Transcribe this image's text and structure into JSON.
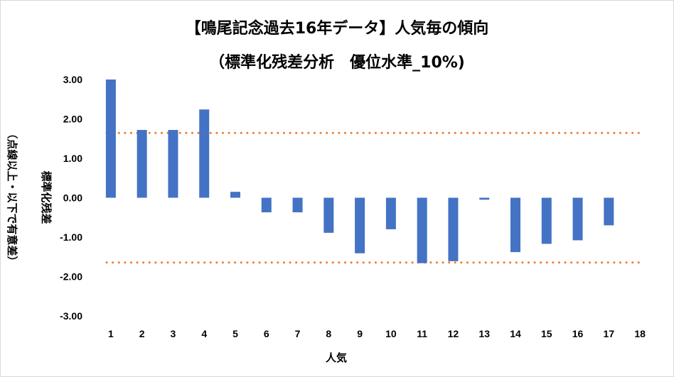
{
  "chart_data": {
    "type": "bar",
    "title": "【鳴尾記念過去16年データ】人気毎の傾向",
    "subtitle": "（標準化残差分析　優位水準_10%)",
    "xlabel": "人気",
    "ylabel_main": "標準化残差",
    "ylabel_sub": "（点線以上・以下で有意差）",
    "categories": [
      "1",
      "2",
      "3",
      "4",
      "5",
      "6",
      "7",
      "8",
      "9",
      "10",
      "11",
      "12",
      "13",
      "14",
      "15",
      "16",
      "17",
      "18"
    ],
    "values": [
      3.0,
      1.72,
      1.72,
      2.24,
      0.15,
      -0.37,
      -0.37,
      -0.89,
      -1.41,
      -0.8,
      -1.66,
      -1.61,
      -0.05,
      -1.38,
      -1.17,
      -1.08,
      -0.7,
      0
    ],
    "ylim": [
      -3,
      3
    ],
    "yticks": [
      "3.00",
      "2.00",
      "1.00",
      "0.00",
      "-1.00",
      "-2.00",
      "-3.00"
    ],
    "reference_lines": [
      1.645,
      -1.645
    ],
    "bar_color": "#4472C4",
    "reference_color": "#ED7D31",
    "grid": false
  }
}
